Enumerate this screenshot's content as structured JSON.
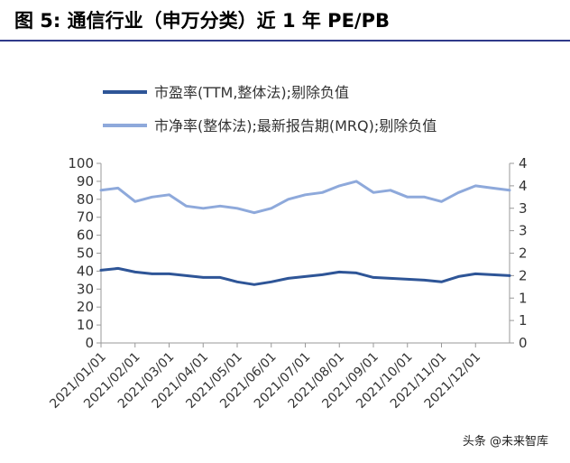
{
  "figure_title": "图 5:  通信行业（申万分类）近 1 年 PE/PB",
  "watermark": "头条 @未来智库",
  "chart_data": {
    "type": "line",
    "title": "",
    "x": [
      "2021/01/01",
      "2021/01/15",
      "2021/02/01",
      "2021/02/15",
      "2021/03/01",
      "2021/03/15",
      "2021/04/01",
      "2021/04/15",
      "2021/05/01",
      "2021/05/15",
      "2021/06/01",
      "2021/06/15",
      "2021/07/01",
      "2021/07/15",
      "2021/08/01",
      "2021/08/15",
      "2021/09/01",
      "2021/09/15",
      "2021/10/01",
      "2021/10/15",
      "2021/11/01",
      "2021/11/15",
      "2021/12/01",
      "2021/12/15",
      "2021/12/31"
    ],
    "xtick_labels": [
      "2021/01/01",
      "2021/02/01",
      "2021/03/01",
      "2021/04/01",
      "2021/05/01",
      "2021/06/01",
      "2021/07/01",
      "2021/08/01",
      "2021/09/01",
      "2021/10/01",
      "2021/11/01",
      "2021/12/01"
    ],
    "series": [
      {
        "name": "市盈率(TTM,整体法);剔除负值",
        "axis": "left",
        "color": "#2e5597",
        "values": [
          40.5,
          41.5,
          39.5,
          38.5,
          38.5,
          37.5,
          36.5,
          36.5,
          34,
          32.5,
          34,
          36,
          37,
          38,
          39.5,
          39,
          36.5,
          36,
          35.5,
          35,
          34,
          37,
          38.5,
          38,
          37.5
        ]
      },
      {
        "name": "市净率(整体法);最新报告期(MRQ);剔除负值",
        "axis": "right",
        "color": "#8ea9db",
        "values": [
          3.4,
          3.45,
          3.15,
          3.25,
          3.3,
          3.05,
          3.0,
          3.05,
          3.0,
          2.9,
          3.0,
          3.2,
          3.3,
          3.35,
          3.5,
          3.6,
          3.35,
          3.4,
          3.25,
          3.25,
          3.15,
          3.35,
          3.5,
          3.45,
          3.4
        ]
      }
    ],
    "ylim_left": [
      0,
      100
    ],
    "yticks_left": [
      "0",
      "10",
      "20",
      "30",
      "40",
      "50",
      "60",
      "70",
      "80",
      "90",
      "100"
    ],
    "ylim_right": [
      0,
      4
    ],
    "yticks_right": [
      "0",
      "0.5",
      "1",
      "1.5",
      "2",
      "2.5",
      "3",
      "3.5",
      "4"
    ],
    "right_tick_display": [
      "0",
      "1",
      "1",
      "2",
      "2",
      "3",
      "3",
      "4",
      "4"
    ],
    "grid": false,
    "legend_position": "top"
  }
}
